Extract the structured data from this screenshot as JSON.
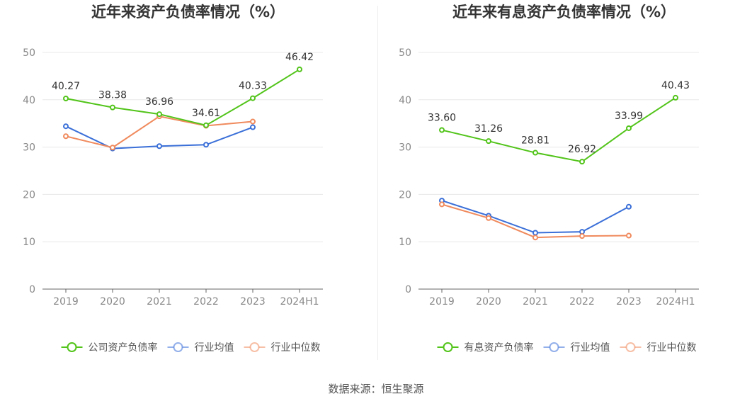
{
  "source_text": "数据来源：恒生聚源",
  "colors": {
    "company": "#52c41a",
    "avg": "#3a6fd8",
    "median": "#f08a5d",
    "grid": "#e8e8e8",
    "axis": "#666666"
  },
  "chart_data": [
    {
      "type": "line",
      "title": "近年来资产负债率情况（%）",
      "categories": [
        "2019",
        "2020",
        "2021",
        "2022",
        "2023",
        "2024H1"
      ],
      "ylim": [
        0,
        50
      ],
      "yticks": [
        0,
        10,
        20,
        30,
        40,
        50
      ],
      "grid": true,
      "legend_position": "bottom",
      "series": [
        {
          "name": "公司资产负债率",
          "key": "company",
          "values": [
            40.27,
            38.38,
            36.96,
            34.61,
            40.33,
            46.42
          ],
          "labels": true
        },
        {
          "name": "行业均值",
          "key": "avg",
          "values": [
            34.4,
            29.7,
            30.2,
            30.5,
            34.2,
            null
          ],
          "labels": false
        },
        {
          "name": "行业中位数",
          "key": "median",
          "values": [
            32.3,
            29.9,
            36.5,
            34.5,
            35.4,
            null
          ],
          "labels": false
        }
      ]
    },
    {
      "type": "line",
      "title": "近年来有息资产负债率情况（%）",
      "categories": [
        "2019",
        "2020",
        "2021",
        "2022",
        "2023",
        "2024H1"
      ],
      "ylim": [
        0,
        50
      ],
      "yticks": [
        0,
        10,
        20,
        30,
        40,
        50
      ],
      "grid": true,
      "legend_position": "bottom",
      "series": [
        {
          "name": "有息资产负债率",
          "key": "company",
          "values": [
            33.6,
            31.26,
            28.81,
            26.92,
            33.99,
            40.43
          ],
          "labels": true
        },
        {
          "name": "行业均值",
          "key": "avg",
          "values": [
            18.7,
            15.5,
            11.9,
            12.1,
            17.4,
            null
          ],
          "labels": false
        },
        {
          "name": "行业中位数",
          "key": "median",
          "values": [
            17.9,
            15.0,
            10.9,
            11.2,
            11.3,
            null
          ],
          "labels": false
        }
      ]
    }
  ]
}
